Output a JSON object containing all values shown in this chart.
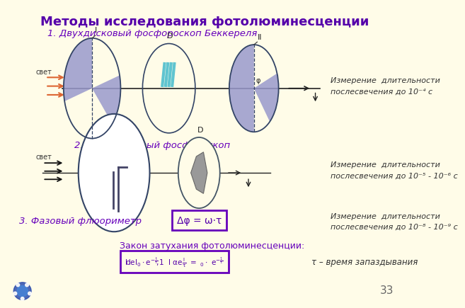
{
  "bg_color": "#FFFCE8",
  "title": "Методы исследования фотолюминесценции",
  "subtitle1": "1. Двухдисковый фосфороскоп Беккереля",
  "subtitle2": "2. Однодисковый фосфороскоп",
  "subtitle3": "3. Фазовый флюориметр",
  "dark_purple": "#5500AA",
  "purple": "#6600BB",
  "blue_fill": "#9999CC",
  "orange": "#DD6633",
  "page_num": "33",
  "formula_box_text": "Δφ = ω·τ",
  "law_text": "Закон затухания фотолюминесценции:",
  "tau_text": "τ – время запаздывания",
  "meas1_l1": "Измерение  длительности",
  "meas1_l2": "послесвечения до 10⁻⁴ с",
  "meas2_l1": "Измерение  длительности",
  "meas2_l2": "послесвечения до 10⁻⁵ - 10⁻⁶ с",
  "meas3_l1": "Измерение  длительности",
  "meas3_l2": "послесвечения до 10⁻⁸ - 10⁻⁹ с"
}
